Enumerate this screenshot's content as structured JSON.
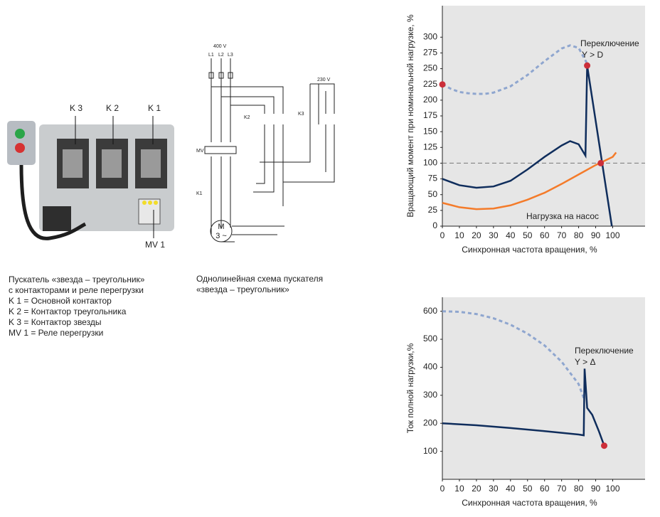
{
  "starter": {
    "labels": [
      "K 3",
      "K 2",
      "K 1"
    ],
    "relay": "MV 1",
    "caption": [
      "Пускатель «звезда – треугольник»",
      "с контакторами и реле перегрузки",
      "K 1 = Основной контактор",
      "K 2 = Контактор треугольника",
      "K 3 = Контактор звезды",
      "MV 1 = Реле перегрузки"
    ]
  },
  "schematic": {
    "voltage": "400 V",
    "phases": [
      "L1",
      "L2",
      "L3"
    ],
    "k2": "K2",
    "k3": "K3",
    "control_voltage": "230 V",
    "mv": "MV",
    "k1": "K1",
    "motor": [
      "M",
      "3 ~"
    ],
    "caption": [
      "Однолинейная схема пускателя",
      "«звезда – треугольник»"
    ]
  },
  "chart_data": [
    {
      "type": "line",
      "ylabel": "Вращающий момент при номинальной нагрузке, %",
      "xlabel": "Синхронная частота вращения, %",
      "xlim": [
        0,
        119
      ],
      "ylim": [
        0,
        350
      ],
      "xticks": [
        0,
        10,
        20,
        30,
        40,
        50,
        60,
        70,
        80,
        90,
        100
      ],
      "yticks": [
        0,
        25,
        50,
        75,
        100,
        125,
        150,
        175,
        200,
        225,
        250,
        275,
        300
      ],
      "background": "#e6e6e6",
      "series": [
        {
          "color": "#8fa6cf",
          "dash": true,
          "x": [
            0,
            5,
            10,
            15,
            20,
            25,
            30,
            40,
            50,
            60,
            70,
            75,
            80,
            85
          ],
          "values": [
            225,
            218,
            213,
            211,
            210,
            210,
            212,
            222,
            240,
            262,
            282,
            287,
            283,
            258
          ]
        },
        {
          "color": "#0f2d5c",
          "dash": false,
          "x": [
            0,
            10,
            20,
            30,
            40,
            50,
            60,
            70,
            75,
            80,
            84,
            85,
            99.5
          ],
          "values": [
            75,
            65,
            61,
            63,
            72,
            90,
            110,
            128,
            135,
            130,
            112,
            255,
            0
          ]
        },
        {
          "color": "#f47b2a",
          "dash": false,
          "x": [
            0,
            10,
            20,
            30,
            40,
            50,
            60,
            70,
            80,
            90,
            100,
            102
          ],
          "values": [
            37,
            30,
            27,
            28,
            33,
            42,
            53,
            67,
            82,
            97,
            110,
            117
          ]
        }
      ],
      "hline": {
        "value": 100,
        "color": "#777777"
      },
      "markers": {
        "color": "#cc2f3a",
        "x": [
          0,
          85,
          93
        ],
        "values": [
          225,
          255,
          100
        ]
      },
      "annotations": [
        "Переключение",
        "Y > D",
        "Нагрузка на насос"
      ]
    },
    {
      "type": "line",
      "ylabel": "Ток полной нагрузки,%",
      "xlabel": "Синхронная частота вращения, %",
      "xlim": [
        0,
        119
      ],
      "ylim": [
        0,
        650
      ],
      "xticks": [
        0,
        10,
        20,
        30,
        40,
        50,
        60,
        70,
        80,
        90,
        100
      ],
      "yticks": [
        100,
        200,
        300,
        400,
        500,
        600
      ],
      "background": "#e6e6e6",
      "series": [
        {
          "color": "#8fa6cf",
          "dash": true,
          "x": [
            0,
            10,
            20,
            30,
            40,
            50,
            60,
            70,
            80,
            83
          ],
          "values": [
            600,
            598,
            590,
            575,
            552,
            520,
            478,
            420,
            340,
            290
          ]
        },
        {
          "color": "#0f2d5c",
          "dash": false,
          "x": [
            0,
            20,
            40,
            60,
            80,
            83,
            83.5,
            85,
            88,
            92,
            95
          ],
          "values": [
            200,
            193,
            183,
            172,
            160,
            157,
            395,
            255,
            230,
            170,
            120
          ]
        }
      ],
      "markers": {
        "color": "#cc2f3a",
        "x": [
          95
        ],
        "values": [
          120
        ]
      },
      "annotations": [
        "Переключение",
        "Y > Δ"
      ]
    }
  ]
}
